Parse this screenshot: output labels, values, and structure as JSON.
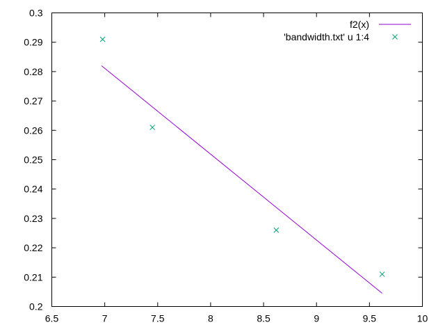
{
  "chart_data": {
    "type": "scatter",
    "title": "",
    "xlabel": "",
    "ylabel": "",
    "xlim": [
      6.5,
      10
    ],
    "ylim": [
      0.2,
      0.3
    ],
    "x_ticks": [
      "6.5",
      "7",
      "7.5",
      "8",
      "8.5",
      "9",
      "9.5",
      "10"
    ],
    "y_ticks": [
      "0.2",
      "0.21",
      "0.22",
      "0.23",
      "0.24",
      "0.25",
      "0.26",
      "0.27",
      "0.28",
      "0.29",
      "0.3"
    ],
    "grid": false,
    "legend_position": "top-right",
    "series": [
      {
        "name": "f2(x)",
        "kind": "line",
        "color": "#9400d3",
        "x": [
          6.97,
          9.62
        ],
        "y": [
          0.282,
          0.2045
        ]
      },
      {
        "name": "'bandwidth.txt' u 1:4",
        "kind": "points",
        "marker": "x",
        "color": "#009e73",
        "x": [
          6.98,
          7.45,
          8.62,
          9.62
        ],
        "y": [
          0.291,
          0.261,
          0.226,
          0.211
        ]
      }
    ]
  }
}
